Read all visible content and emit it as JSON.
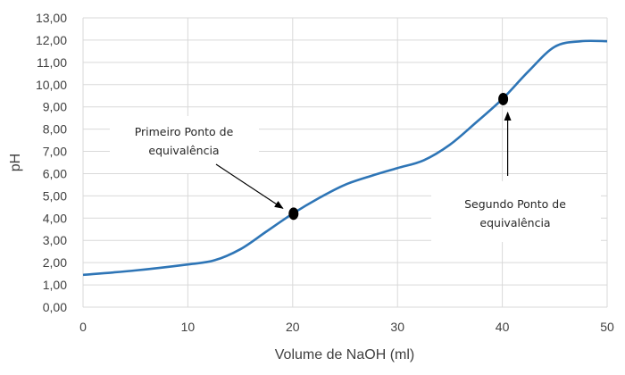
{
  "chart_data": {
    "type": "line",
    "xlabel": "Volume de NaOH (ml)",
    "ylabel": "pH",
    "xlim": [
      0,
      50
    ],
    "ylim": [
      0,
      13
    ],
    "x_ticks": [
      "0",
      "10",
      "20",
      "30",
      "40",
      "50"
    ],
    "y_ticks": [
      "0,00",
      "1,00",
      "2,00",
      "3,00",
      "4,00",
      "5,00",
      "6,00",
      "7,00",
      "8,00",
      "9,00",
      "10,00",
      "11,00",
      "12,00",
      "13,00"
    ],
    "grid": true,
    "legend": "none",
    "colors": {
      "series": "#2e75b6",
      "grid": "#d9d9d9",
      "marker": "#000000"
    },
    "series": [
      {
        "x": [
          0,
          5,
          10,
          12.5,
          15,
          17.5,
          20,
          22.5,
          25,
          27.5,
          30,
          32.5,
          35,
          37.5,
          40,
          42.5,
          45,
          47.5,
          50
        ],
        "y": [
          1.45,
          1.65,
          1.92,
          2.1,
          2.6,
          3.4,
          4.2,
          4.9,
          5.5,
          5.9,
          6.25,
          6.6,
          7.3,
          8.3,
          9.35,
          10.6,
          11.7,
          11.95,
          11.95
        ]
      }
    ],
    "annotations": [
      {
        "lines": [
          "Primeiro Ponto de",
          "equivalência"
        ],
        "point": [
          20,
          4.2
        ]
      },
      {
        "lines": [
          "Segundo Ponto de",
          "equivalência"
        ],
        "point": [
          40,
          9.35
        ]
      }
    ]
  }
}
